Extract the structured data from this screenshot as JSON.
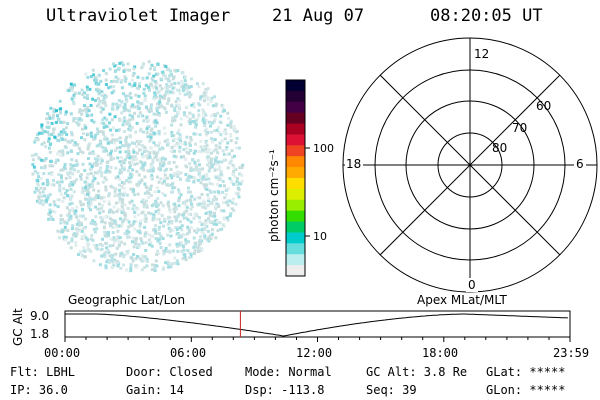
{
  "header": {
    "instrument": "Ultraviolet Imager",
    "date": "21 Aug 07",
    "time": "08:20:05 UT"
  },
  "colorbar": {
    "unit_label": "photon cm⁻²s⁻¹",
    "ticks": [
      "100",
      "10"
    ],
    "colors": [
      "#000033",
      "#220033",
      "#440044",
      "#660022",
      "#aa0022",
      "#dd1133",
      "#ee4422",
      "#ff8800",
      "#ffaa00",
      "#ffdd00",
      "#ddee00",
      "#99ee00",
      "#33dd00",
      "#00cc66",
      "#00cccc",
      "#66dddd",
      "#bbeeee",
      "#eeeeee"
    ]
  },
  "polar_grid": {
    "hour_labels": {
      "top": "12",
      "bottom": "0",
      "left": "18",
      "right": "6"
    },
    "lat_labels": [
      "60",
      "70",
      "80"
    ]
  },
  "timeline": {
    "y_axis_title": "GC Alt",
    "y_ticks": [
      "9.0",
      "1.8"
    ],
    "left_caption": "Geographic Lat/Lon",
    "right_caption": "Apex MLat/MLT",
    "x_ticks": [
      "00:00",
      "06:00",
      "12:00",
      "18:00",
      "23:59"
    ],
    "marker_hour": 8.335
  },
  "info_rows": [
    [
      "Flt: LBHL",
      "Door: Closed",
      "Mode: Normal",
      "GC Alt: 3.8 Re",
      "GLat: *****"
    ],
    [
      "IP: 36.0",
      "Gain: 14",
      "Dsp: -113.8",
      "Seq: 39",
      "GLon: *****"
    ]
  ]
}
